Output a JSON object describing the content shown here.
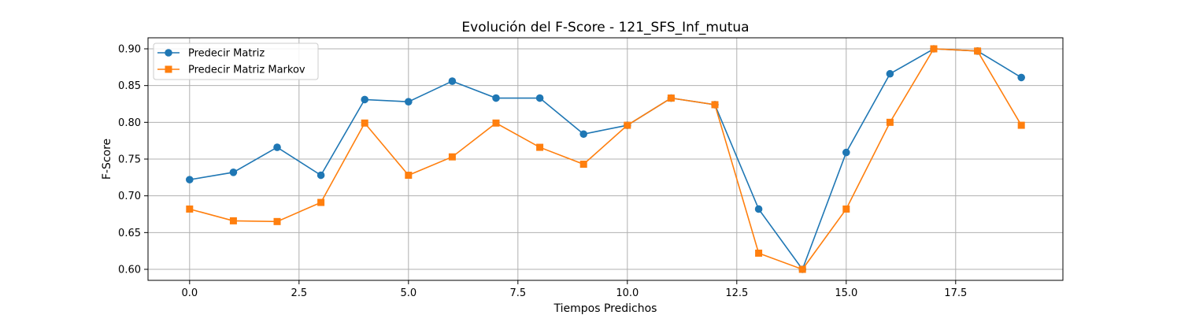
{
  "chart_data": {
    "type": "line",
    "title": "Evolución del F-Score - 121_SFS_Inf_mutua",
    "xlabel": "Tiempos Predichos",
    "ylabel": "F-Score",
    "xlim": [
      -0.95,
      19.95
    ],
    "ylim": [
      0.585,
      0.915
    ],
    "xticks": [
      0.0,
      2.5,
      5.0,
      7.5,
      10.0,
      12.5,
      15.0,
      17.5
    ],
    "xtick_labels": [
      "0.0",
      "2.5",
      "5.0",
      "7.5",
      "10.0",
      "12.5",
      "15.0",
      "17.5"
    ],
    "yticks": [
      0.6,
      0.65,
      0.7,
      0.75,
      0.8,
      0.85,
      0.9
    ],
    "ytick_labels": [
      "0.60",
      "0.65",
      "0.70",
      "0.75",
      "0.80",
      "0.85",
      "0.90"
    ],
    "grid": true,
    "legend_position": "top-left",
    "x": [
      0,
      1,
      2,
      3,
      4,
      5,
      6,
      7,
      8,
      9,
      10,
      11,
      12,
      13,
      14,
      15,
      16,
      17,
      18,
      19
    ],
    "series": [
      {
        "name": "Predecir Matriz",
        "color": "#1f77b4",
        "marker": "circle",
        "values": [
          0.722,
          0.732,
          0.766,
          0.728,
          0.831,
          0.828,
          0.856,
          0.833,
          0.833,
          0.784,
          0.796,
          0.833,
          0.824,
          0.682,
          0.6,
          0.759,
          0.866,
          0.9,
          0.897,
          0.861
        ]
      },
      {
        "name": "Predecir Matriz Markov",
        "color": "#ff7f0e",
        "marker": "square",
        "values": [
          0.682,
          0.666,
          0.665,
          0.691,
          0.799,
          0.728,
          0.753,
          0.799,
          0.766,
          0.743,
          0.796,
          0.833,
          0.824,
          0.622,
          0.6,
          0.682,
          0.8,
          0.9,
          0.897,
          0.796
        ]
      }
    ]
  }
}
